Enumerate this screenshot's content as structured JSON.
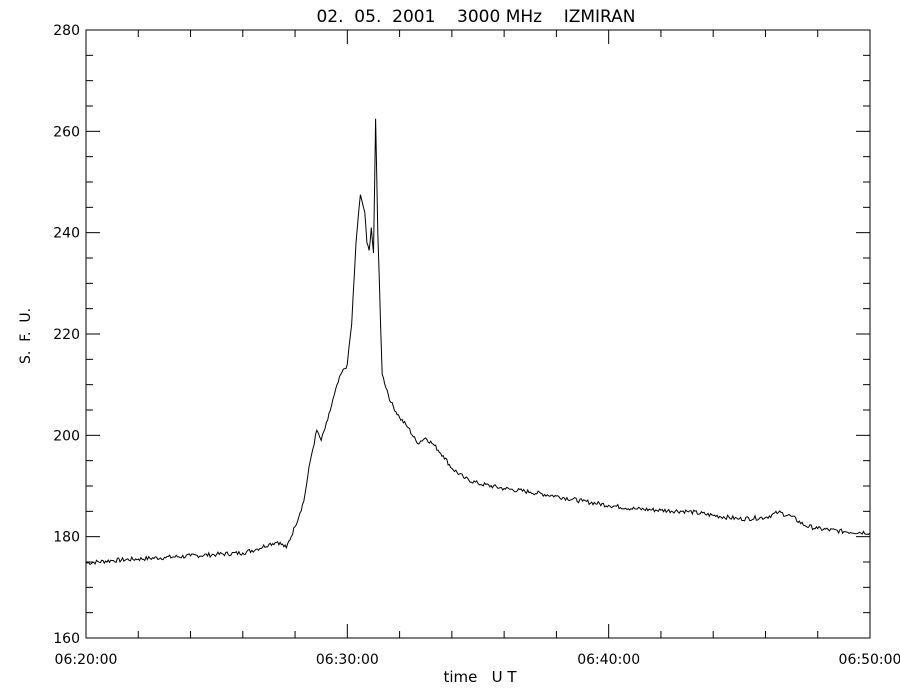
{
  "chart_data": {
    "type": "line",
    "title": "02.  05.  2001    3000 MHz    IZMIRAN",
    "xlabel": "time   U T",
    "ylabel": "S.  F.  U.",
    "xlim": [
      "06:20:00",
      "06:50:00"
    ],
    "ylim": [
      160,
      280
    ],
    "x_ticks": [
      "06:20:00",
      "06:30:00",
      "06:40:00",
      "06:50:00"
    ],
    "y_ticks": [
      "160",
      "180",
      "200",
      "220",
      "240",
      "260",
      "280"
    ],
    "grid": false,
    "series": [
      {
        "x": [
          "06:20:00",
          "06:21:00",
          "06:22:00",
          "06:23:00",
          "06:24:00",
          "06:25:00",
          "06:26:00",
          "06:26:30",
          "06:27:00",
          "06:27:20",
          "06:27:40",
          "06:28:00",
          "06:28:20",
          "06:28:35",
          "06:28:50",
          "06:29:00",
          "06:29:15",
          "06:29:30",
          "06:29:45",
          "06:30:00",
          "06:30:10",
          "06:30:20",
          "06:30:30",
          "06:30:40",
          "06:30:45",
          "06:30:50",
          "06:30:55",
          "06:31:00",
          "06:31:05",
          "06:31:10",
          "06:31:20",
          "06:31:40",
          "06:32:00",
          "06:32:20",
          "06:32:40",
          "06:33:00",
          "06:33:20",
          "06:33:40",
          "06:34:00",
          "06:34:30",
          "06:35:00",
          "06:36:00",
          "06:37:00",
          "06:38:00",
          "06:39:00",
          "06:40:00",
          "06:41:00",
          "06:42:00",
          "06:43:00",
          "06:44:00",
          "06:45:00",
          "06:46:00",
          "06:46:30",
          "06:47:00",
          "06:47:30",
          "06:48:00",
          "06:49:00",
          "06:50:00"
        ],
        "y": [
          174.8,
          175.3,
          175.6,
          175.9,
          176.2,
          176.5,
          176.8,
          177.5,
          178.5,
          179,
          177.8,
          182,
          187,
          195,
          201,
          199,
          203,
          208,
          212,
          214,
          222,
          238,
          247.5,
          244,
          238,
          236.5,
          241,
          236,
          262.5,
          240,
          212,
          206.5,
          203.5,
          201.5,
          198.5,
          199.5,
          198,
          196,
          193.5,
          191.5,
          190.5,
          189.5,
          188.8,
          188,
          187,
          186.2,
          185.5,
          185.2,
          185,
          184.2,
          183.5,
          183.8,
          184.8,
          184,
          182.2,
          181.6,
          181,
          180.8
        ]
      }
    ]
  }
}
